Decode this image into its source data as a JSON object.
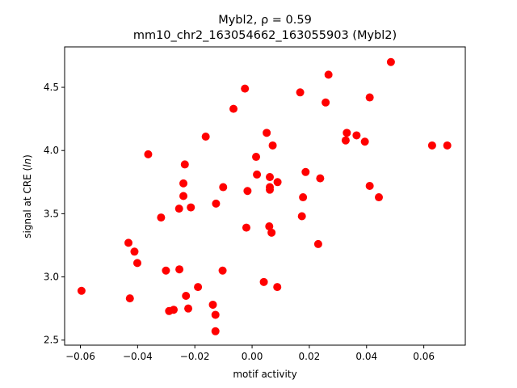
{
  "chart_data": {
    "type": "scatter",
    "title_line1": "Mybl2, ρ = 0.59",
    "title_line2": "mm10_chr2_163054662_163055903 (Mybl2)",
    "xlabel": "motif activity",
    "ylabel_prefix": "signal at CRE (",
    "ylabel_italic": "ln",
    "ylabel_suffix": ")",
    "xlim": [
      -0.0655,
      0.0745
    ],
    "ylim": [
      2.46,
      4.82
    ],
    "xticks": [
      -0.06,
      -0.04,
      -0.02,
      0.0,
      0.02,
      0.04,
      0.06
    ],
    "xtick_labels": [
      "−0.06",
      "−0.04",
      "−0.02",
      "0.00",
      "0.02",
      "0.04",
      "0.06"
    ],
    "yticks": [
      2.5,
      3.0,
      3.5,
      4.0,
      4.5
    ],
    "ytick_labels": [
      "2.5",
      "3.0",
      "3.5",
      "4.0",
      "4.5"
    ],
    "grid": false,
    "marker_color": "#ff0000",
    "points": [
      {
        "x": 0.0485,
        "y": 4.7
      },
      {
        "x": 0.0267,
        "y": 4.6
      },
      {
        "x": -0.0025,
        "y": 4.49
      },
      {
        "x": 0.0168,
        "y": 4.46
      },
      {
        "x": 0.0411,
        "y": 4.42
      },
      {
        "x": 0.0257,
        "y": 4.38
      },
      {
        "x": -0.0065,
        "y": 4.33
      },
      {
        "x": 0.0331,
        "y": 4.14
      },
      {
        "x": 0.0051,
        "y": 4.14
      },
      {
        "x": 0.0365,
        "y": 4.12
      },
      {
        "x": -0.0162,
        "y": 4.11
      },
      {
        "x": 0.0327,
        "y": 4.08
      },
      {
        "x": 0.0394,
        "y": 4.07
      },
      {
        "x": 0.0072,
        "y": 4.04
      },
      {
        "x": 0.0629,
        "y": 4.04
      },
      {
        "x": 0.0682,
        "y": 4.04
      },
      {
        "x": -0.0363,
        "y": 3.97
      },
      {
        "x": 0.0014,
        "y": 3.95
      },
      {
        "x": -0.0235,
        "y": 3.89
      },
      {
        "x": 0.0187,
        "y": 3.83
      },
      {
        "x": 0.0017,
        "y": 3.81
      },
      {
        "x": 0.0062,
        "y": 3.79
      },
      {
        "x": 0.0238,
        "y": 3.78
      },
      {
        "x": 0.0089,
        "y": 3.75
      },
      {
        "x": -0.024,
        "y": 3.74
      },
      {
        "x": 0.0411,
        "y": 3.72
      },
      {
        "x": -0.0101,
        "y": 3.71
      },
      {
        "x": 0.0062,
        "y": 3.71
      },
      {
        "x": 0.0062,
        "y": 3.69
      },
      {
        "x": -0.0016,
        "y": 3.68
      },
      {
        "x": -0.024,
        "y": 3.64
      },
      {
        "x": 0.0443,
        "y": 3.63
      },
      {
        "x": 0.0178,
        "y": 3.63
      },
      {
        "x": -0.0126,
        "y": 3.58
      },
      {
        "x": -0.0214,
        "y": 3.55
      },
      {
        "x": -0.0255,
        "y": 3.54
      },
      {
        "x": -0.0318,
        "y": 3.47
      },
      {
        "x": 0.0174,
        "y": 3.48
      },
      {
        "x": 0.006,
        "y": 3.4
      },
      {
        "x": -0.002,
        "y": 3.39
      },
      {
        "x": 0.0068,
        "y": 3.35
      },
      {
        "x": -0.0432,
        "y": 3.27
      },
      {
        "x": 0.0231,
        "y": 3.26
      },
      {
        "x": -0.0411,
        "y": 3.2
      },
      {
        "x": -0.0401,
        "y": 3.11
      },
      {
        "x": -0.0254,
        "y": 3.06
      },
      {
        "x": -0.0301,
        "y": 3.05
      },
      {
        "x": -0.0103,
        "y": 3.05
      },
      {
        "x": 0.0041,
        "y": 2.96
      },
      {
        "x": -0.0189,
        "y": 2.92
      },
      {
        "x": 0.0088,
        "y": 2.92
      },
      {
        "x": -0.0596,
        "y": 2.89
      },
      {
        "x": -0.0231,
        "y": 2.85
      },
      {
        "x": -0.0427,
        "y": 2.83
      },
      {
        "x": -0.0137,
        "y": 2.78
      },
      {
        "x": -0.0223,
        "y": 2.75
      },
      {
        "x": -0.0274,
        "y": 2.74
      },
      {
        "x": -0.029,
        "y": 2.73
      },
      {
        "x": -0.0128,
        "y": 2.7
      },
      {
        "x": -0.0128,
        "y": 2.57
      }
    ]
  }
}
